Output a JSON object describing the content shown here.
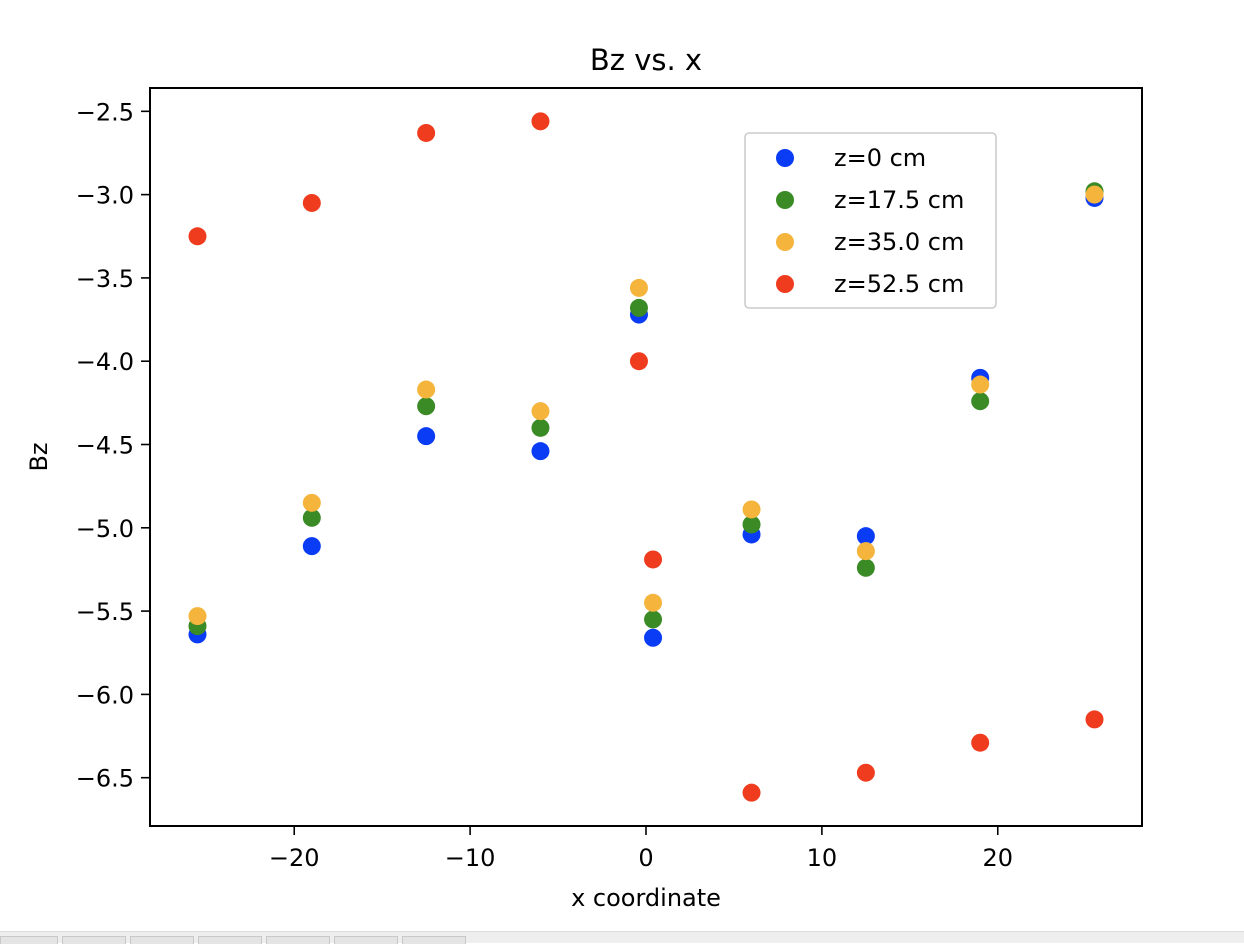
{
  "chart_data": {
    "type": "scatter",
    "title": "Bz vs. x",
    "xlabel": "x coordinate",
    "ylabel": "Bz",
    "xlim": [
      -28.2,
      28.2
    ],
    "ylim": [
      -6.79,
      -2.36
    ],
    "xticks": [
      -20,
      -10,
      0,
      10,
      20
    ],
    "xtick_labels": [
      "−20",
      "−10",
      "0",
      "10",
      "20"
    ],
    "yticks": [
      -2.5,
      -3.0,
      -3.5,
      -4.0,
      -4.5,
      -5.0,
      -5.5,
      -6.0,
      -6.5
    ],
    "ytick_labels": [
      "−2.5",
      "−3.0",
      "−3.5",
      "−4.0",
      "−4.5",
      "−5.0",
      "−5.5",
      "−6.0",
      "−6.5"
    ],
    "grid": false,
    "legend_position": "top-right",
    "series": [
      {
        "name": "z=0 cm",
        "color": "#0a3cf5",
        "points": [
          [
            -25.5,
            -5.64
          ],
          [
            -19.0,
            -5.11
          ],
          [
            -12.5,
            -4.45
          ],
          [
            -6.0,
            -4.54
          ],
          [
            -0.4,
            -3.72
          ],
          [
            0.4,
            -5.66
          ],
          [
            6.0,
            -5.04
          ],
          [
            12.5,
            -5.05
          ],
          [
            19.0,
            -4.1
          ],
          [
            25.5,
            -3.02
          ]
        ]
      },
      {
        "name": "z=17.5 cm",
        "color": "#3a8a26",
        "points": [
          [
            -25.5,
            -5.59
          ],
          [
            -19.0,
            -4.94
          ],
          [
            -12.5,
            -4.27
          ],
          [
            -6.0,
            -4.4
          ],
          [
            -0.4,
            -3.68
          ],
          [
            0.4,
            -5.55
          ],
          [
            6.0,
            -4.98
          ],
          [
            12.5,
            -5.24
          ],
          [
            19.0,
            -4.24
          ],
          [
            25.5,
            -2.98
          ]
        ]
      },
      {
        "name": "z=35.0 cm",
        "color": "#f5b43c",
        "points": [
          [
            -25.5,
            -5.53
          ],
          [
            -19.0,
            -4.85
          ],
          [
            -12.5,
            -4.17
          ],
          [
            -6.0,
            -4.3
          ],
          [
            -0.4,
            -3.56
          ],
          [
            0.4,
            -5.45
          ],
          [
            6.0,
            -4.89
          ],
          [
            12.5,
            -5.14
          ],
          [
            19.0,
            -4.14
          ],
          [
            25.5,
            -3.0
          ]
        ]
      },
      {
        "name": "z=52.5 cm",
        "color": "#f03c1e",
        "points": [
          [
            -25.5,
            -3.25
          ],
          [
            -19.0,
            -3.05
          ],
          [
            -12.5,
            -2.63
          ],
          [
            -6.0,
            -2.56
          ],
          [
            -0.4,
            -4.0
          ],
          [
            0.4,
            -5.19
          ],
          [
            6.0,
            -6.59
          ],
          [
            12.5,
            -6.47
          ],
          [
            19.0,
            -6.29
          ],
          [
            25.5,
            -6.15
          ]
        ]
      }
    ]
  }
}
